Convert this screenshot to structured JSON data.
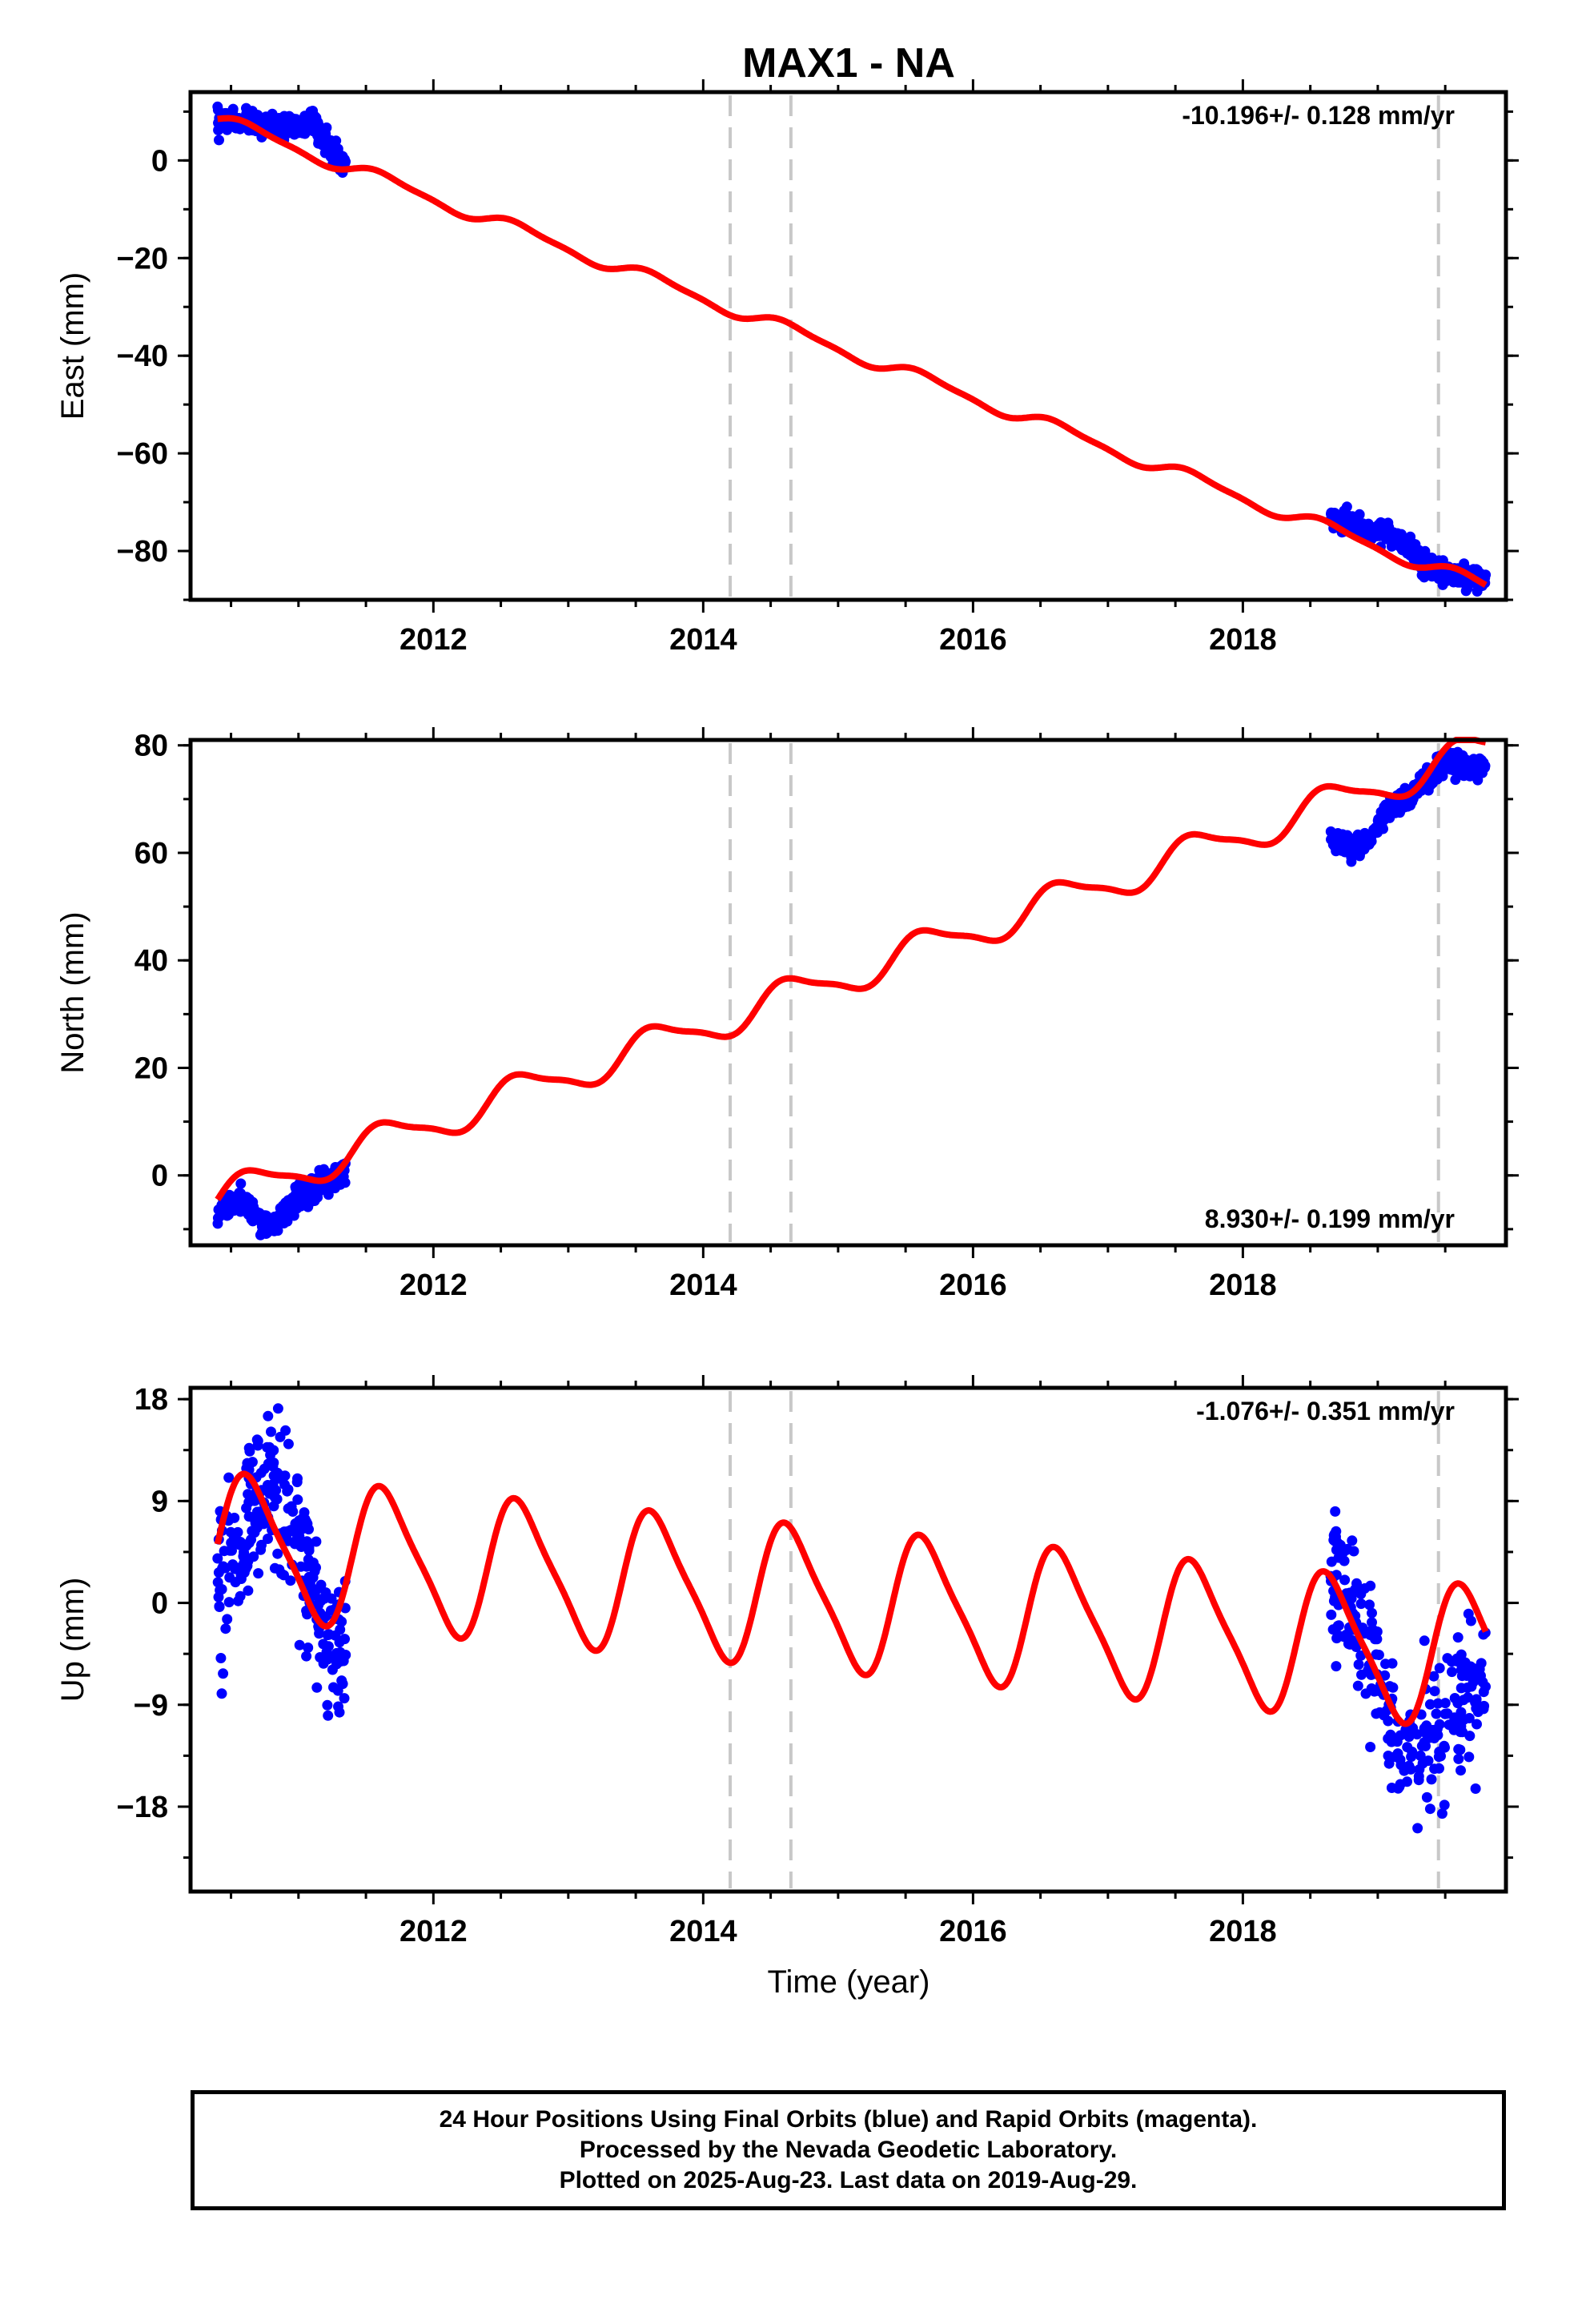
{
  "title": "MAX1 - NA",
  "colors": {
    "data": "#0000ff",
    "model": "#ff0000",
    "event": "#c8c8c8",
    "frame": "#000000"
  },
  "xlabel": "Time (year)",
  "footer": {
    "line1": "24 Hour Positions Using Final Orbits (blue) and Rapid Orbits (magenta).",
    "line2": "Processed by the Nevada Geodetic Laboratory.",
    "line3": "Plotted on 2025-Aug-23. Last data on 2019-Aug-29."
  },
  "chart_data": [
    {
      "type": "scatter",
      "ylabel": "East (mm)",
      "rate_text": "-10.196+/- 0.128 mm/yr",
      "rate_position": "top-right",
      "xlim": [
        2010.2,
        2019.95
      ],
      "ylim": [
        -90,
        14
      ],
      "xticks": [
        2012,
        2014,
        2016,
        2018
      ],
      "yticks": [
        0,
        -20,
        -40,
        -60,
        -80
      ],
      "event_lines_x": [
        2014.2,
        2014.65,
        2019.45
      ],
      "data_segments": [
        {
          "x_range": [
            2010.4,
            2011.35
          ],
          "points": [
            [
              2010.4,
              8
            ],
            [
              2010.55,
              8
            ],
            [
              2010.7,
              7.5
            ],
            [
              2010.85,
              7
            ],
            [
              2011.0,
              7
            ],
            [
              2011.1,
              8
            ],
            [
              2011.2,
              4
            ],
            [
              2011.3,
              0
            ]
          ]
        },
        {
          "x_range": [
            2018.65,
            2019.8
          ],
          "points": [
            [
              2018.65,
              -73.5
            ],
            [
              2018.8,
              -74.5
            ],
            [
              2018.95,
              -76
            ],
            [
              2019.1,
              -77
            ],
            [
              2019.25,
              -80
            ],
            [
              2019.4,
              -83.5
            ],
            [
              2019.55,
              -85
            ],
            [
              2019.75,
              -85.5
            ]
          ]
        }
      ],
      "model": {
        "rate": -10.196,
        "ref_epoch": 2010.4,
        "intercept": 8.5,
        "annual_amplitude": 1.3,
        "semiannual_amplitude": 0.4,
        "offsets": [
          {
            "x": 2014.2,
            "value": 0
          },
          {
            "x": 2014.65,
            "value": 0
          }
        ]
      }
    },
    {
      "type": "scatter",
      "ylabel": "North (mm)",
      "rate_text": "8.930+/- 0.199 mm/yr",
      "rate_position": "bottom-right",
      "xlim": [
        2010.2,
        2019.95
      ],
      "ylim": [
        -13,
        81
      ],
      "xticks": [
        2012,
        2014,
        2016,
        2018
      ],
      "yticks": [
        80,
        60,
        40,
        20,
        0
      ],
      "event_lines_x": [
        2014.2,
        2014.65,
        2019.45
      ],
      "data_segments": [
        {
          "x_range": [
            2010.4,
            2011.35
          ],
          "points": [
            [
              2010.4,
              -7
            ],
            [
              2010.5,
              -5
            ],
            [
              2010.6,
              -5
            ],
            [
              2010.75,
              -10
            ],
            [
              2010.9,
              -7
            ],
            [
              2011.05,
              -3
            ],
            [
              2011.2,
              -1
            ],
            [
              2011.35,
              1
            ]
          ]
        },
        {
          "x_range": [
            2018.65,
            2019.8
          ],
          "points": [
            [
              2018.65,
              63
            ],
            [
              2018.8,
              60.5
            ],
            [
              2018.95,
              63
            ],
            [
              2019.05,
              67
            ],
            [
              2019.2,
              70
            ],
            [
              2019.35,
              73
            ],
            [
              2019.5,
              77
            ],
            [
              2019.65,
              76
            ]
          ]
        }
      ],
      "model": {
        "rate": 8.93,
        "ref_epoch": 2010.4,
        "intercept": -4.5,
        "annual_amplitude": 3.2,
        "semiannual_amplitude": 0.8,
        "offsets": [
          {
            "x": 2014.2,
            "value": 0
          },
          {
            "x": 2014.65,
            "value": 0
          }
        ]
      }
    },
    {
      "type": "scatter",
      "ylabel": "Up (mm)",
      "rate_text": "-1.076+/- 0.351 mm/yr",
      "rate_position": "top-right",
      "xlim": [
        2010.2,
        2019.95
      ],
      "ylim": [
        -25.5,
        19
      ],
      "xticks": [
        2012,
        2014,
        2016,
        2018
      ],
      "yticks": [
        18,
        9,
        0,
        -9,
        -18
      ],
      "event_lines_x": [
        2014.2,
        2014.65,
        2019.45
      ],
      "data_segments": [
        {
          "x_range": [
            2010.4,
            2011.35
          ],
          "points": [
            [
              2010.4,
              2
            ],
            [
              2010.55,
              5
            ],
            [
              2010.7,
              9
            ],
            [
              2010.85,
              10
            ],
            [
              2011.0,
              6
            ],
            [
              2011.1,
              2
            ],
            [
              2011.2,
              -3
            ],
            [
              2011.35,
              -5
            ]
          ]
        },
        {
          "x_range": [
            2018.65,
            2019.8
          ],
          "points": [
            [
              2018.65,
              3
            ],
            [
              2018.8,
              0
            ],
            [
              2018.95,
              -5
            ],
            [
              2019.05,
              -9
            ],
            [
              2019.2,
              -13
            ],
            [
              2019.35,
              -12
            ],
            [
              2019.5,
              -11
            ],
            [
              2019.7,
              -9
            ]
          ]
        }
      ],
      "model": {
        "rate": -1.076,
        "ref_epoch": 2010.4,
        "intercept": 5.2,
        "annual_amplitude": 6.0,
        "semiannual_amplitude": 1.2,
        "offsets": [
          {
            "x": 2014.2,
            "value": 0
          },
          {
            "x": 2014.65,
            "value": 0
          }
        ]
      }
    }
  ]
}
